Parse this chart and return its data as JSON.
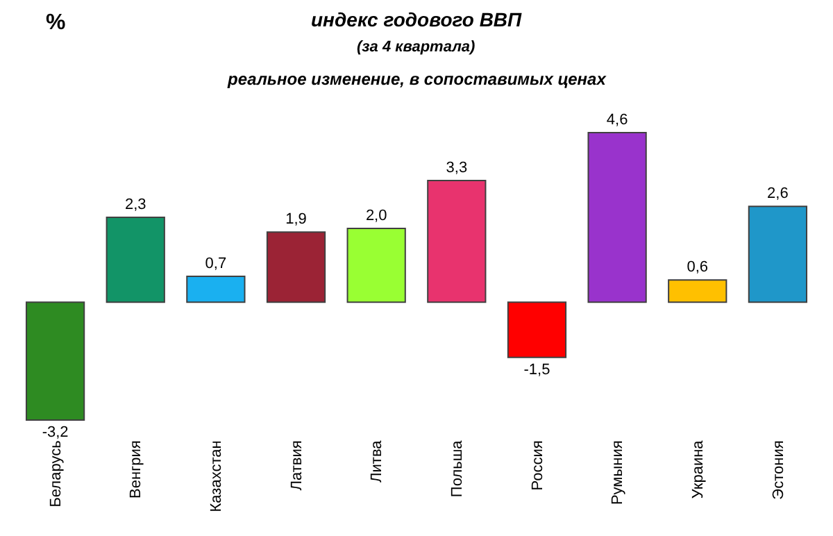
{
  "chart_data": {
    "type": "bar",
    "title": "индекс годового ВВП",
    "subtitle": "(за 4 квартала)\nреальное изменение, в сопоставимых ценах",
    "ylabel": "%",
    "categories": [
      "Беларусь",
      "Венгрия",
      "Казахстан",
      "Латвия",
      "Литва",
      "Польша",
      "Россия",
      "Румыния",
      "Украина",
      "Эстония"
    ],
    "values": [
      -3.2,
      2.3,
      0.7,
      1.9,
      2.0,
      3.3,
      -1.5,
      4.6,
      0.6,
      2.6
    ],
    "value_labels": [
      "-3,2",
      "2,3",
      "0,7",
      "1,9",
      "2,0",
      "3,3",
      "-1,5",
      "4,6",
      "0,6",
      "2,6"
    ],
    "colors": [
      "#2e8b22",
      "#129467",
      "#1ab0f0",
      "#9b2335",
      "#99ff33",
      "#e8336e",
      "#ff0000",
      "#9933cc",
      "#ffc000",
      "#1f97c9"
    ],
    "tick_labels": "x",
    "legend": false
  }
}
